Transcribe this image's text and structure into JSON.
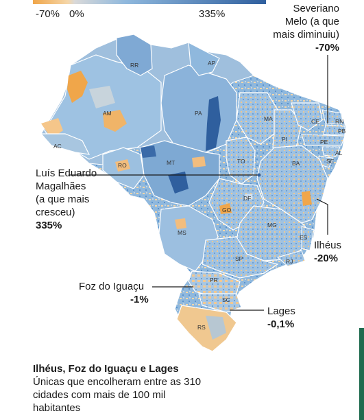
{
  "legend": {
    "ticks": [
      "-70%",
      "0%",
      "335%"
    ]
  },
  "states": [
    "RR",
    "AP",
    "AM",
    "PA",
    "MA",
    "CE",
    "RN",
    "PB",
    "PE",
    "AL",
    "SE",
    "PI",
    "AC",
    "RO",
    "MT",
    "TO",
    "BA",
    "DF",
    "GO",
    "MG",
    "ES",
    "MS",
    "SP",
    "RJ",
    "PR",
    "SC",
    "RS"
  ],
  "annotations": {
    "severiano": {
      "name": "Severiano\nMelo (a que\nmais diminuiu)",
      "value": "-70%"
    },
    "luis": {
      "name": "Luís Eduardo\nMagalhães\n(a que mais\ncresceu)",
      "value": "335%"
    },
    "ilheus": {
      "name": "Ilhéus",
      "value": "-20%"
    },
    "foz": {
      "name": "Foz do Iguaçu",
      "value": "-1%"
    },
    "lages": {
      "name": "Lages",
      "value": "-0,1%"
    }
  },
  "footnote": {
    "title": "Ilhéus, Foz do Iguaçu e Lages",
    "body": "Únicas que encolheram entre as 310 cidades com mais de 100 mil habitantes"
  },
  "colors": {
    "decline": "#f0a64a",
    "light_decline": "#f5d6a8",
    "neutral": "#c8d4dc",
    "growth_light": "#8fb8dd",
    "growth": "#5b94cf",
    "growth_strong": "#2f5f9e",
    "border": "#ffffff"
  }
}
